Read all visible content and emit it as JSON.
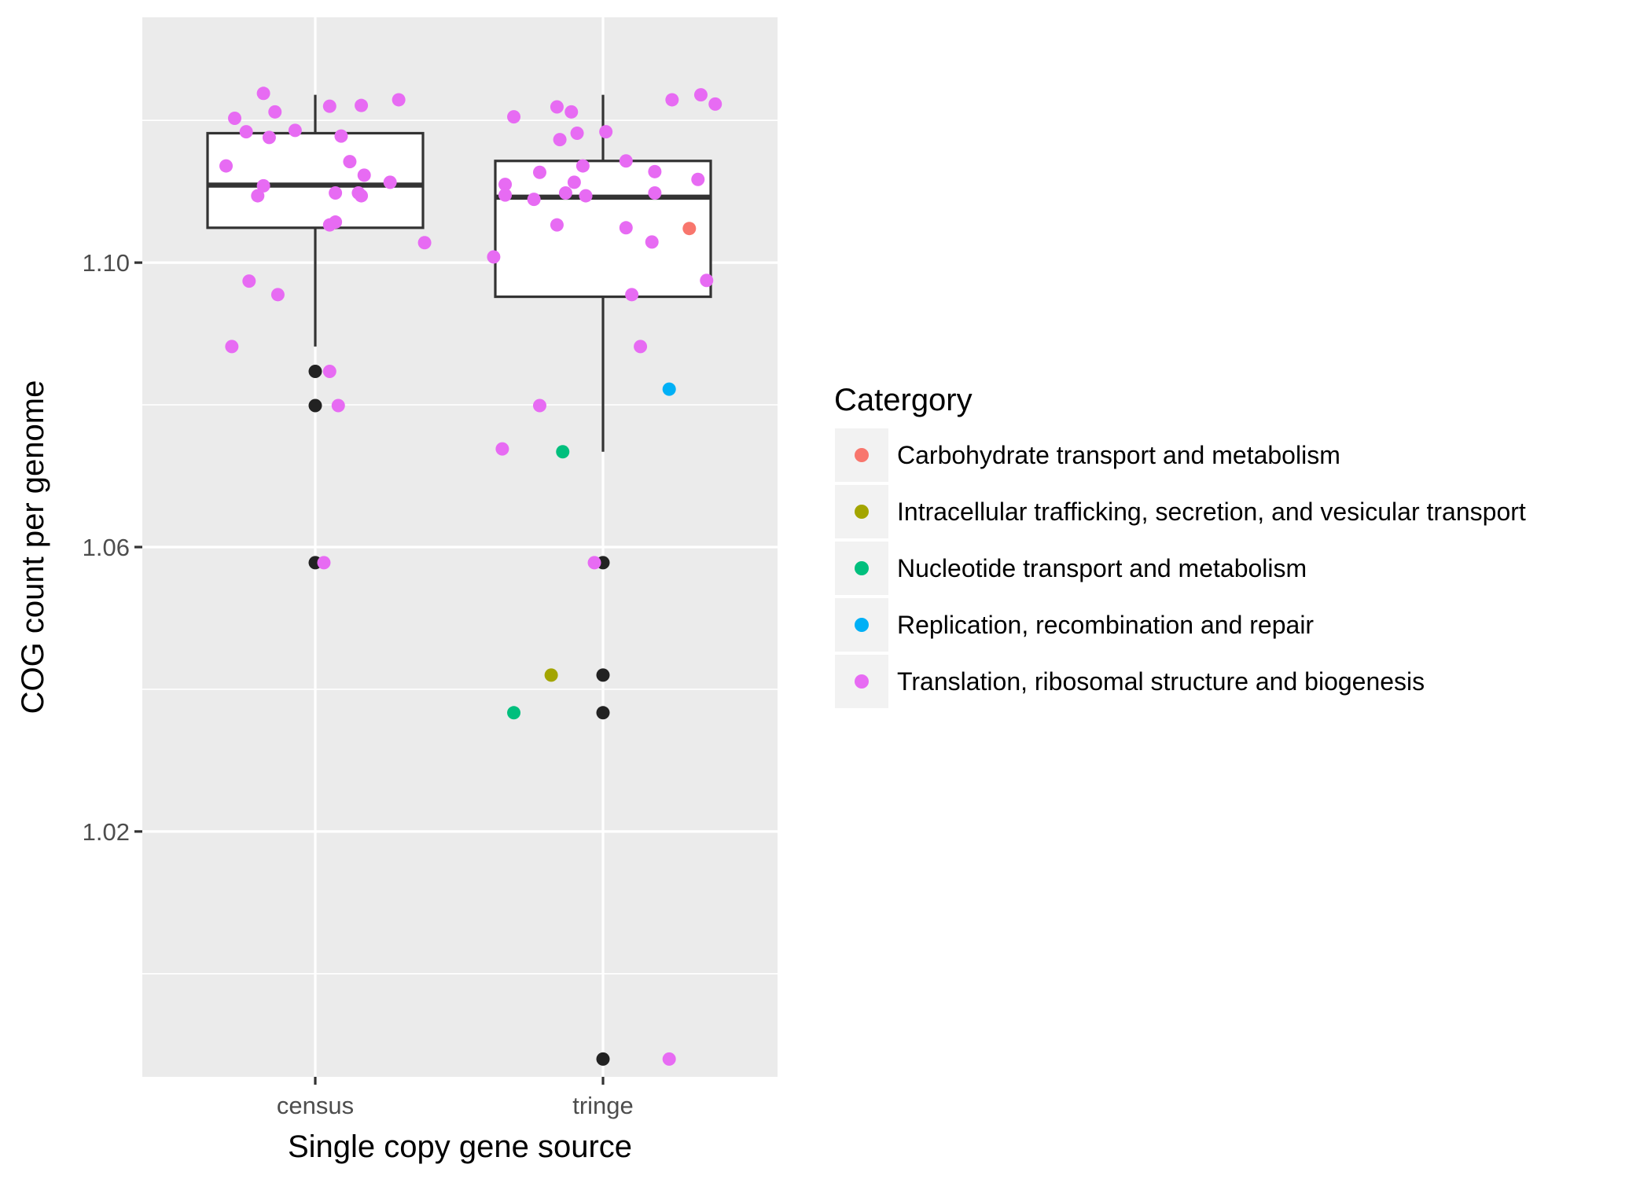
{
  "chart_data": {
    "type": "boxplot",
    "xlabel": "Single copy gene source",
    "ylabel": "COG count per genome",
    "categories": [
      "census",
      "tringe"
    ],
    "ylim": [
      0.9855,
      1.1345
    ],
    "yticks": [
      1.02,
      1.06,
      1.1
    ],
    "ytick_labels": [
      "1.02",
      "1.06",
      "1.10"
    ],
    "grid": true,
    "legend": {
      "title": "Catergory",
      "position": "right",
      "items": [
        {
          "label": "Carbohydrate transport and metabolism",
          "color": "#F8766D"
        },
        {
          "label": "Intracellular trafficking, secretion, and vesicular transport",
          "color": "#A3A500"
        },
        {
          "label": "Nucleotide transport and metabolism",
          "color": "#00BF7D"
        },
        {
          "label": "Replication, recombination and repair",
          "color": "#00B0F6"
        },
        {
          "label": "Translation, ribosomal structure and biogenesis",
          "color": "#E76BF3"
        }
      ]
    },
    "boxes": [
      {
        "category": "census",
        "whisker_low": 1.0882,
        "q1": 1.1049,
        "median": 1.1109,
        "q3": 1.1182,
        "whisker_high": 1.1236
      },
      {
        "category": "tringe",
        "whisker_low": 1.0734,
        "q1": 1.0952,
        "median": 1.1092,
        "q3": 1.1143,
        "whisker_high": 1.1236
      }
    ],
    "outliers": [
      {
        "category": "census",
        "y": 1.0847
      },
      {
        "category": "census",
        "y": 1.0799
      },
      {
        "category": "census",
        "y": 1.0578
      },
      {
        "category": "tringe",
        "y": 1.0578
      },
      {
        "category": "tringe",
        "y": 1.042
      },
      {
        "category": "tringe",
        "y": 1.0367
      },
      {
        "category": "tringe",
        "y": 0.988
      }
    ],
    "points": [
      {
        "x": 0.69,
        "y": 1.1136,
        "c": 4
      },
      {
        "x": 0.71,
        "y": 1.0882,
        "c": 4
      },
      {
        "x": 0.72,
        "y": 1.1203,
        "c": 4
      },
      {
        "x": 0.76,
        "y": 1.1184,
        "c": 4
      },
      {
        "x": 0.77,
        "y": 1.0974,
        "c": 4
      },
      {
        "x": 0.8,
        "y": 1.1094,
        "c": 4
      },
      {
        "x": 0.82,
        "y": 1.1108,
        "c": 4
      },
      {
        "x": 0.82,
        "y": 1.1238,
        "c": 4
      },
      {
        "x": 0.84,
        "y": 1.1176,
        "c": 4
      },
      {
        "x": 0.86,
        "y": 1.1212,
        "c": 4
      },
      {
        "x": 0.87,
        "y": 1.0955,
        "c": 4
      },
      {
        "x": 0.93,
        "y": 1.1186,
        "c": 4
      },
      {
        "x": 1.03,
        "y": 1.0578,
        "c": 4
      },
      {
        "x": 1.05,
        "y": 1.1053,
        "c": 4
      },
      {
        "x": 1.05,
        "y": 1.122,
        "c": 4
      },
      {
        "x": 1.05,
        "y": 1.0847,
        "c": 4
      },
      {
        "x": 1.07,
        "y": 1.1098,
        "c": 4
      },
      {
        "x": 1.07,
        "y": 1.1057,
        "c": 4
      },
      {
        "x": 1.08,
        "y": 1.0799,
        "c": 4
      },
      {
        "x": 1.09,
        "y": 1.1178,
        "c": 4
      },
      {
        "x": 1.12,
        "y": 1.1142,
        "c": 4
      },
      {
        "x": 1.15,
        "y": 1.1098,
        "c": 4
      },
      {
        "x": 1.16,
        "y": 1.1094,
        "c": 4
      },
      {
        "x": 1.16,
        "y": 1.1221,
        "c": 4
      },
      {
        "x": 1.17,
        "y": 1.1123,
        "c": 4
      },
      {
        "x": 1.26,
        "y": 1.1113,
        "c": 4
      },
      {
        "x": 1.29,
        "y": 1.1229,
        "c": 4
      },
      {
        "x": 1.38,
        "y": 1.1028,
        "c": 4
      },
      {
        "x": 1.62,
        "y": 1.1008,
        "c": 4
      },
      {
        "x": 1.65,
        "y": 1.0738,
        "c": 4
      },
      {
        "x": 1.66,
        "y": 1.111,
        "c": 4
      },
      {
        "x": 1.66,
        "y": 1.1095,
        "c": 4
      },
      {
        "x": 1.69,
        "y": 1.1205,
        "c": 4
      },
      {
        "x": 1.76,
        "y": 1.1089,
        "c": 4
      },
      {
        "x": 1.78,
        "y": 1.1127,
        "c": 4
      },
      {
        "x": 1.78,
        "y": 1.0799,
        "c": 4
      },
      {
        "x": 1.84,
        "y": 1.1219,
        "c": 4
      },
      {
        "x": 1.84,
        "y": 1.1053,
        "c": 4
      },
      {
        "x": 1.85,
        "y": 1.1173,
        "c": 4
      },
      {
        "x": 1.87,
        "y": 1.1098,
        "c": 4
      },
      {
        "x": 1.89,
        "y": 1.1212,
        "c": 4
      },
      {
        "x": 1.9,
        "y": 1.1113,
        "c": 4
      },
      {
        "x": 1.91,
        "y": 1.1182,
        "c": 4
      },
      {
        "x": 1.93,
        "y": 1.1136,
        "c": 4
      },
      {
        "x": 1.94,
        "y": 1.1094,
        "c": 4
      },
      {
        "x": 1.97,
        "y": 1.0578,
        "c": 4
      },
      {
        "x": 2.01,
        "y": 1.1184,
        "c": 4
      },
      {
        "x": 2.08,
        "y": 1.1049,
        "c": 4
      },
      {
        "x": 2.08,
        "y": 1.1143,
        "c": 4
      },
      {
        "x": 2.1,
        "y": 1.0955,
        "c": 4
      },
      {
        "x": 2.13,
        "y": 1.0882,
        "c": 4
      },
      {
        "x": 2.17,
        "y": 1.1029,
        "c": 4
      },
      {
        "x": 2.18,
        "y": 1.1098,
        "c": 4
      },
      {
        "x": 2.18,
        "y": 1.1128,
        "c": 4
      },
      {
        "x": 2.23,
        "y": 0.988,
        "c": 4
      },
      {
        "x": 2.24,
        "y": 1.1229,
        "c": 4
      },
      {
        "x": 2.33,
        "y": 1.1117,
        "c": 4
      },
      {
        "x": 2.34,
        "y": 1.1236,
        "c": 4
      },
      {
        "x": 2.36,
        "y": 1.0975,
        "c": 4
      },
      {
        "x": 2.39,
        "y": 1.1223,
        "c": 4
      },
      {
        "x": 2.3,
        "y": 1.1048,
        "c": 0
      },
      {
        "x": 1.82,
        "y": 1.042,
        "c": 1
      },
      {
        "x": 1.69,
        "y": 1.0367,
        "c": 2
      },
      {
        "x": 1.86,
        "y": 1.0734,
        "c": 2
      },
      {
        "x": 2.23,
        "y": 1.0822,
        "c": 3
      }
    ]
  }
}
